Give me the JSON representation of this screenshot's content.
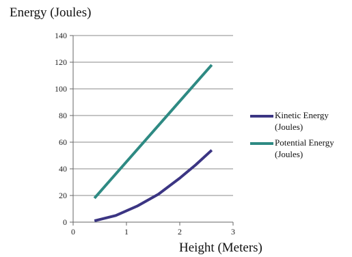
{
  "chart_data": {
    "type": "line",
    "title": "",
    "ylabel": "Energy (Joules)",
    "xlabel": "Height (Meters)",
    "xlim": [
      0,
      3
    ],
    "ylim": [
      0,
      140
    ],
    "xticks": [
      0,
      1,
      2,
      3
    ],
    "yticks": [
      0,
      20,
      40,
      60,
      80,
      100,
      120,
      140
    ],
    "grid": "horizontal",
    "legend": "right",
    "series": [
      {
        "name_lines": [
          "Kinetic Energy",
          "(Joules)"
        ],
        "color": "#3b3583",
        "x": [
          0.4,
          0.8,
          1.2,
          1.6,
          2.0,
          2.3,
          2.6
        ],
        "y": [
          1,
          5,
          12,
          21,
          33,
          43,
          54
        ]
      },
      {
        "name_lines": [
          "Potential Energy",
          "(Joules)"
        ],
        "color": "#2e8a83",
        "x": [
          0.4,
          2.6
        ],
        "y": [
          18,
          118
        ]
      }
    ]
  }
}
